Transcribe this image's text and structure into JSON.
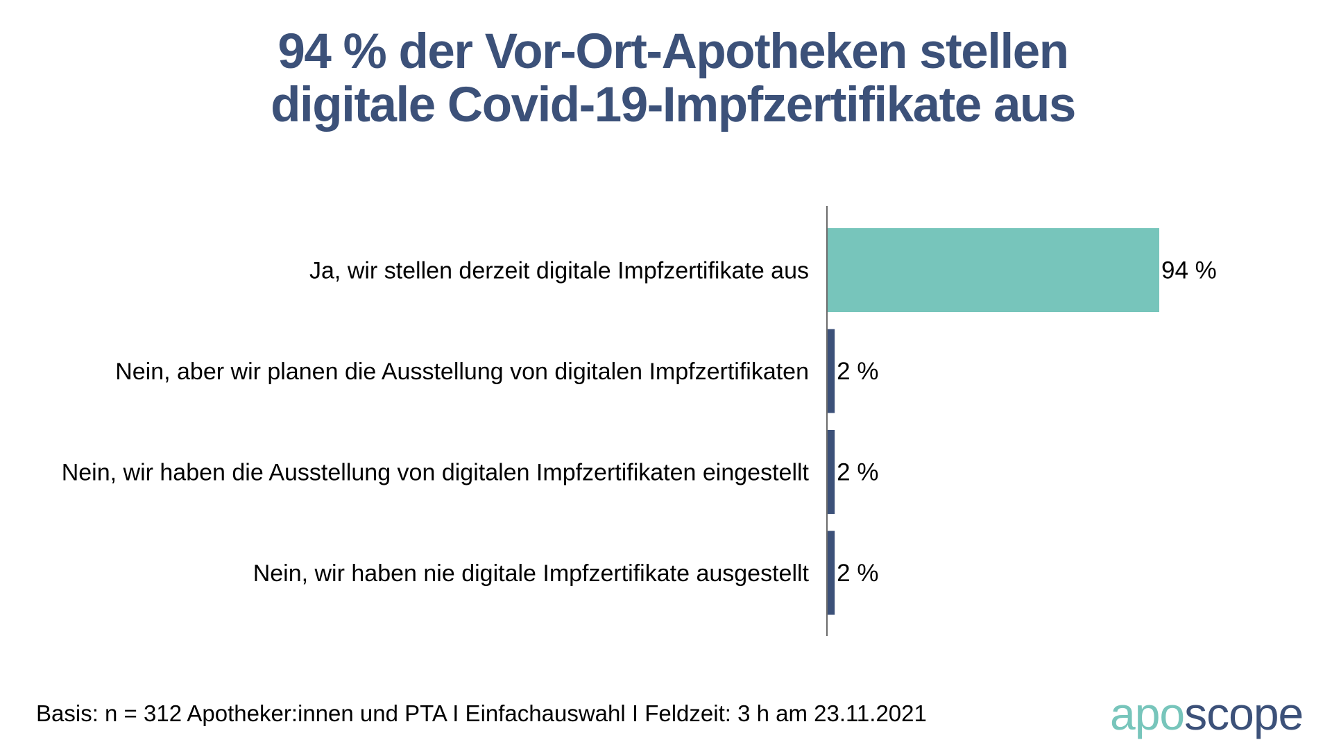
{
  "title": {
    "line1": "94 % der Vor-Ort-Apotheken stellen",
    "line2": "digitale Covid-19-Impfzertifikate aus"
  },
  "chart_data": {
    "type": "bar",
    "orientation": "horizontal",
    "title": "94 % der Vor-Ort-Apotheken stellen digitale Covid-19-Impfzertifikate aus",
    "xlabel": "",
    "ylabel": "",
    "xlim": [
      0,
      100
    ],
    "grid": false,
    "legend": "none",
    "categories": [
      "Ja, wir stellen derzeit digitale Impfzertifikate aus",
      "Nein, aber wir planen die Ausstellung von digitalen Impfzertifikaten",
      "Nein, wir haben die Ausstellung von digitalen Impfzertifikaten eingestellt",
      "Nein, wir haben nie digitale Impfzertifikate ausgestellt"
    ],
    "values": [
      94,
      2,
      2,
      2
    ],
    "data_labels": [
      "94 %",
      "2 %",
      "2 %",
      "2 %"
    ],
    "colors": [
      "#77c5bb",
      "#3c5179",
      "#3c5179",
      "#3c5179"
    ],
    "unit": "%"
  },
  "footer": {
    "basis": "Basis: n = 312 Apotheker:innen und PTA I Einfachauswahl I Feldzeit: 3 h am 23.11.2021"
  },
  "logo": {
    "part1": "apo",
    "part2": "scope",
    "colors": {
      "apo": "#77c5bb",
      "scope": "#3c5179"
    }
  }
}
